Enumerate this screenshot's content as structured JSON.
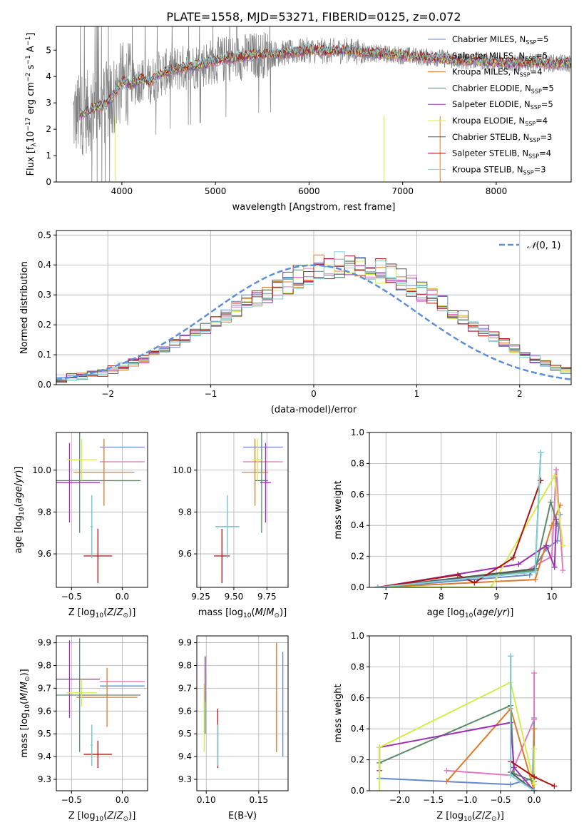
{
  "figure": {
    "title": "PLATE=1558, MJD=53271, FIBERID=0125, z=0.072"
  },
  "models": [
    {
      "key": "chabrier_miles",
      "label_pre": "Chabrier MILES, N",
      "label_sub": "SSP",
      "label_post": "=5",
      "color": "#6688cc"
    },
    {
      "key": "salpeter_miles",
      "label_pre": "Salpeter MILES, N",
      "label_sub": "SSP",
      "label_post": "=5",
      "color": "#e377c2"
    },
    {
      "key": "kroupa_miles",
      "label_pre": "Kroupa MILES, N",
      "label_sub": "SSP",
      "label_post": "=4",
      "color": "#e07b29"
    },
    {
      "key": "chabrier_elodie",
      "label_pre": "Chabrier ELODIE, N",
      "label_sub": "SSP",
      "label_post": "=5",
      "color": "#5b8a6a"
    },
    {
      "key": "salpeter_elodie",
      "label_pre": "Salpeter ELODIE, N",
      "label_sub": "SSP",
      "label_post": "=5",
      "color": "#9b30b0"
    },
    {
      "key": "kroupa_elodie",
      "label_pre": "Kroupa ELODIE, N",
      "label_sub": "SSP",
      "label_post": "=4",
      "color": "#d4ed4a"
    },
    {
      "key": "chabrier_stelib",
      "label_pre": "Chabrier STELIB, N",
      "label_sub": "SSP",
      "label_post": "=3",
      "color": "#555555"
    },
    {
      "key": "salpeter_stelib",
      "label_pre": "Salpeter STELIB, N",
      "label_sub": "SSP",
      "label_post": "=4",
      "color": "#b01010"
    },
    {
      "key": "kroupa_stelib",
      "label_pre": "Kroupa STELIB, N",
      "label_sub": "SSP",
      "label_post": "=3",
      "color": "#7fd3d8"
    }
  ],
  "chart_data": [
    {
      "id": "spectrum",
      "type": "line",
      "xlabel": "wavelength [Angstrom, rest frame]",
      "ylabel": "Flux [f_λ 10^-17 erg cm^-2 s^-1 A^-1]",
      "xlim": [
        3300,
        8800
      ],
      "ylim": [
        0,
        5.9
      ],
      "xticks": [
        4000,
        5000,
        6000,
        7000,
        8000
      ],
      "yticks": [
        0,
        1,
        2,
        3,
        4,
        5
      ],
      "grid": false,
      "legend": "right",
      "data_series": {
        "name": "",
        "color": "#808080"
      },
      "continuum": {
        "x": [
          3500,
          3600,
          3700,
          3800,
          3900,
          4000,
          4100,
          4200,
          4300,
          4400,
          4500,
          4600,
          4700,
          4800,
          5000,
          5200,
          5400,
          5600,
          5800,
          6000,
          6200,
          6400,
          6600,
          6800,
          7000,
          7200,
          7400,
          7600,
          7800,
          8000,
          8200,
          8400,
          8600,
          8800
        ],
        "y": [
          2.5,
          2.6,
          2.8,
          2.9,
          3.2,
          3.8,
          3.7,
          3.9,
          3.8,
          4.1,
          4.2,
          4.3,
          4.35,
          4.4,
          4.6,
          4.7,
          4.8,
          4.85,
          4.9,
          5.0,
          4.95,
          5.0,
          4.9,
          4.85,
          4.8,
          4.75,
          4.7,
          4.6,
          4.6,
          4.55,
          4.5,
          4.55,
          4.5,
          4.5
        ]
      }
    },
    {
      "id": "residual_hist",
      "type": "area",
      "xlabel": "(data-model)/error",
      "ylabel": "Normed distribution",
      "xlim": [
        -2.5,
        2.5
      ],
      "ylim": [
        0,
        0.515
      ],
      "xticks": [
        -2,
        -1,
        0,
        1,
        2
      ],
      "yticks": [
        0.0,
        0.1,
        0.2,
        0.3,
        0.4,
        0.5
      ],
      "grid": true,
      "legend": "top-right",
      "gaussian_label": "𝒩(0, 1)",
      "gaussian_color": "#5b8fd8",
      "bin_edges_start": -2.5,
      "bin_width": 0.1,
      "base_values": [
        0.02,
        0.025,
        0.03,
        0.035,
        0.04,
        0.05,
        0.06,
        0.075,
        0.085,
        0.1,
        0.12,
        0.14,
        0.155,
        0.17,
        0.19,
        0.21,
        0.235,
        0.255,
        0.27,
        0.29,
        0.305,
        0.32,
        0.34,
        0.36,
        0.375,
        0.39,
        0.395,
        0.4,
        0.4,
        0.395,
        0.39,
        0.38,
        0.365,
        0.35,
        0.33,
        0.31,
        0.29,
        0.27,
        0.245,
        0.225,
        0.2,
        0.18,
        0.16,
        0.14,
        0.12,
        0.1,
        0.085,
        0.07,
        0.055,
        0.045
      ]
    },
    {
      "id": "age_vs_Z",
      "type": "scatter",
      "xlabel": "Z [log10(Z/Z⊙)]",
      "ylabel": "age  [log10(age/yr)]",
      "xlim": [
        -0.65,
        0.25
      ],
      "ylim": [
        9.44,
        10.18
      ],
      "xticks": [
        -0.5,
        0.0
      ],
      "yticks": [
        9.6,
        9.8,
        10.0
      ],
      "grid": true,
      "points": [
        {
          "model": "chabrier_miles",
          "x": 0.0,
          "y": 10.11,
          "xerr": 0.22,
          "yerr": 0.0
        },
        {
          "model": "salpeter_miles",
          "x": 0.0,
          "y": 10.04,
          "xerr": 0.22,
          "yerr": 0.0
        },
        {
          "model": "kroupa_miles",
          "x": -0.18,
          "y": 9.99,
          "xerr": 0.3,
          "yerr": 0.16
        },
        {
          "model": "chabrier_elodie",
          "x": -0.42,
          "y": 9.95,
          "xerr": 0.6,
          "yerr": 0.25
        },
        {
          "model": "salpeter_elodie",
          "x": -0.52,
          "y": 9.94,
          "xerr": 0.3,
          "yerr": 0.19
        },
        {
          "model": "kroupa_elodie",
          "x": -0.4,
          "y": 10.05,
          "xerr": 0.15,
          "yerr": 0.1
        },
        {
          "model": "chabrier_stelib",
          "x": -0.3,
          "y": 9.73,
          "xerr": 0.01,
          "yerr": 0.15
        },
        {
          "model": "salpeter_stelib",
          "x": -0.24,
          "y": 9.59,
          "xerr": 0.14,
          "yerr": 0.13
        },
        {
          "model": "kroupa_stelib",
          "x": -0.3,
          "y": 9.73,
          "xerr": 0.01,
          "yerr": 0.15
        }
      ]
    },
    {
      "id": "age_vs_mass",
      "type": "scatter",
      "xlabel": "mass [log10(M/M⊙)]",
      "ylabel": "",
      "xlim": [
        9.22,
        9.91
      ],
      "ylim": [
        9.44,
        10.18
      ],
      "xticks": [
        9.25,
        9.5,
        9.75
      ],
      "yticks": [
        9.6,
        9.8,
        10.0
      ],
      "grid": true,
      "points": [
        {
          "model": "chabrier_miles",
          "x": 9.72,
          "y": 10.11,
          "xerr": 0.15,
          "yerr": 0.0
        },
        {
          "model": "salpeter_miles",
          "x": 9.72,
          "y": 10.04,
          "xerr": 0.15,
          "yerr": 0.0
        },
        {
          "model": "kroupa_miles",
          "x": 9.66,
          "y": 9.99,
          "xerr": 0.1,
          "yerr": 0.16
        },
        {
          "model": "chabrier_elodie",
          "x": 9.71,
          "y": 9.95,
          "xerr": 0.05,
          "yerr": 0.25
        },
        {
          "model": "salpeter_elodie",
          "x": 9.74,
          "y": 9.94,
          "xerr": 0.04,
          "yerr": 0.19
        },
        {
          "model": "kroupa_elodie",
          "x": 9.68,
          "y": 10.05,
          "xerr": 0.04,
          "yerr": 0.1
        },
        {
          "model": "chabrier_stelib",
          "x": 9.45,
          "y": 9.73,
          "xerr": 0.09,
          "yerr": 0.15
        },
        {
          "model": "salpeter_stelib",
          "x": 9.41,
          "y": 9.59,
          "xerr": 0.06,
          "yerr": 0.13
        },
        {
          "model": "kroupa_stelib",
          "x": 9.45,
          "y": 9.73,
          "xerr": 0.09,
          "yerr": 0.15
        }
      ]
    },
    {
      "id": "weight_vs_age",
      "type": "line",
      "xlabel": "age  [log10(age/yr)]",
      "ylabel": "mass weight",
      "xlim": [
        6.7,
        10.35
      ],
      "ylim": [
        0,
        1.0
      ],
      "xticks": [
        7,
        8,
        9,
        10
      ],
      "yticks": [
        0.0,
        0.2,
        0.4,
        0.6,
        0.8,
        1.0
      ],
      "grid": true,
      "series": [
        {
          "model": "chabrier_miles",
          "x": [
            6.85,
            9.6,
            9.9,
            10.1,
            10.15
          ],
          "y": [
            0.0,
            0.08,
            0.25,
            0.3,
            0.47
          ]
        },
        {
          "model": "salpeter_miles",
          "x": [
            6.85,
            9.5,
            10.0,
            10.08,
            10.2
          ],
          "y": [
            0.0,
            0.1,
            0.2,
            0.76,
            0.11
          ]
        },
        {
          "model": "kroupa_miles",
          "x": [
            6.85,
            9.7,
            10.0,
            10.15
          ],
          "y": [
            0.0,
            0.05,
            0.4,
            0.53
          ]
        },
        {
          "model": "chabrier_elodie",
          "x": [
            6.85,
            9.7,
            9.98,
            10.1
          ],
          "y": [
            0.0,
            0.11,
            0.55,
            0.41
          ]
        },
        {
          "model": "salpeter_elodie",
          "x": [
            6.85,
            9.4,
            9.9,
            10.05,
            10.08
          ],
          "y": [
            0.0,
            0.15,
            0.27,
            0.13,
            0.44
          ]
        },
        {
          "model": "kroupa_elodie",
          "x": [
            6.85,
            8.9,
            10.05,
            10.2
          ],
          "y": [
            0.0,
            0.0,
            0.72,
            0.27
          ]
        },
        {
          "model": "chabrier_stelib",
          "x": [
            6.85,
            9.7,
            9.8
          ],
          "y": [
            0.0,
            0.12,
            0.87
          ]
        },
        {
          "model": "salpeter_stelib",
          "x": [
            6.85,
            8.3,
            8.6,
            9.3,
            9.8
          ],
          "y": [
            0.0,
            0.08,
            0.03,
            0.19,
            0.69
          ]
        },
        {
          "model": "kroupa_stelib",
          "x": [
            6.85,
            9.7,
            9.8
          ],
          "y": [
            0.0,
            0.1,
            0.87
          ]
        }
      ]
    },
    {
      "id": "mass_vs_Z",
      "type": "scatter",
      "xlabel": "Z [log10(Z/Z⊙)]",
      "ylabel": "mass [log10(M/M⊙)]",
      "xlim": [
        -0.65,
        0.25
      ],
      "ylim": [
        9.25,
        9.93
      ],
      "xticks": [
        -0.5,
        0.0
      ],
      "yticks": [
        9.3,
        9.4,
        9.5,
        9.6,
        9.7,
        9.8,
        9.9
      ],
      "grid": true,
      "points": [
        {
          "model": "chabrier_miles",
          "x": 0.0,
          "y": 9.71,
          "xerr": 0.22,
          "yerr": 0.0
        },
        {
          "model": "salpeter_miles",
          "x": 0.0,
          "y": 9.73,
          "xerr": 0.22,
          "yerr": 0.0
        },
        {
          "model": "kroupa_miles",
          "x": -0.15,
          "y": 9.66,
          "xerr": 0.3,
          "yerr": 0.13
        },
        {
          "model": "chabrier_elodie",
          "x": -0.42,
          "y": 9.67,
          "xerr": 0.6,
          "yerr": 0.25
        },
        {
          "model": "salpeter_elodie",
          "x": -0.52,
          "y": 9.74,
          "xerr": 0.3,
          "yerr": 0.17
        },
        {
          "model": "kroupa_elodie",
          "x": -0.4,
          "y": 9.68,
          "xerr": 0.15,
          "yerr": 0.06
        },
        {
          "model": "chabrier_stelib",
          "x": -0.3,
          "y": 9.45,
          "xerr": 0.01,
          "yerr": 0.09
        },
        {
          "model": "salpeter_stelib",
          "x": -0.24,
          "y": 9.41,
          "xerr": 0.14,
          "yerr": 0.06
        },
        {
          "model": "kroupa_stelib",
          "x": -0.3,
          "y": 9.45,
          "xerr": 0.01,
          "yerr": 0.09
        }
      ]
    },
    {
      "id": "mass_vs_ebv",
      "type": "scatter",
      "xlabel": "E(B-V)",
      "ylabel": "",
      "xlim": [
        0.091,
        0.178
      ],
      "ylim": [
        9.25,
        9.93
      ],
      "xticks": [
        0.1,
        0.15
      ],
      "yticks": [
        9.3,
        9.4,
        9.5,
        9.6,
        9.7,
        9.8,
        9.9
      ],
      "grid": true,
      "points": [
        {
          "model": "chabrier_miles",
          "x": 0.173,
          "y": 9.63,
          "xerr": 0.0,
          "yerr": 0.23
        },
        {
          "model": "salpeter_miles",
          "x": 0.167,
          "y": 9.66,
          "xerr": 0.0,
          "yerr": 0.24
        },
        {
          "model": "kroupa_miles",
          "x": 0.167,
          "y": 9.66,
          "xerr": 0.0,
          "yerr": 0.24
        },
        {
          "model": "chabrier_elodie",
          "x": 0.099,
          "y": 9.67,
          "xerr": 0.0,
          "yerr": 0.17
        },
        {
          "model": "salpeter_elodie",
          "x": 0.099,
          "y": 9.74,
          "xerr": 0.0,
          "yerr": 0.1
        },
        {
          "model": "kroupa_elodie",
          "x": 0.098,
          "y": 9.57,
          "xerr": 0.0,
          "yerr": 0.15
        },
        {
          "model": "chabrier_stelib",
          "x": 0.111,
          "y": 9.45,
          "xerr": 0.0,
          "yerr": 0.09
        },
        {
          "model": "salpeter_stelib",
          "x": 0.111,
          "y": 9.48,
          "xerr": 0.0,
          "yerr": 0.13
        },
        {
          "model": "kroupa_stelib",
          "x": 0.111,
          "y": 9.45,
          "xerr": 0.0,
          "yerr": 0.09
        }
      ]
    },
    {
      "id": "weight_vs_Z",
      "type": "line",
      "xlabel": "Z [log10(Z/Z⊙)]",
      "ylabel": "mass weight",
      "xlim": [
        -2.45,
        0.55
      ],
      "ylim": [
        0,
        1.0
      ],
      "xticks": [
        -2.0,
        -1.5,
        -1.0,
        -0.5,
        0.0
      ],
      "yticks": [
        0.0,
        0.2,
        0.4,
        0.6,
        0.8,
        1.0
      ],
      "grid": true,
      "series": [
        {
          "model": "chabrier_miles",
          "x": [
            -2.3,
            -0.35,
            -0.02,
            0.0
          ],
          "y": [
            0.08,
            0.04,
            0.08,
            0.47
          ]
        },
        {
          "model": "salpeter_miles",
          "x": [
            -1.3,
            -0.35,
            0.0,
            0.0
          ],
          "y": [
            0.13,
            0.1,
            0.46,
            0.76
          ]
        },
        {
          "model": "kroupa_miles",
          "x": [
            -1.3,
            -0.35,
            0.0,
            0.0
          ],
          "y": [
            0.06,
            0.53,
            0.0,
            0.4
          ]
        },
        {
          "model": "chabrier_elodie",
          "x": [
            -2.3,
            -0.35,
            -0.3,
            0.0
          ],
          "y": [
            0.18,
            0.55,
            0.11,
            0.06
          ]
        },
        {
          "model": "salpeter_elodie",
          "x": [
            -2.3,
            -2.3,
            -0.35,
            -0.3,
            0.0
          ],
          "y": [
            0.13,
            0.28,
            0.44,
            0.15,
            0.0
          ]
        },
        {
          "model": "kroupa_elodie",
          "x": [
            -2.3,
            -2.3,
            -0.35,
            0.0,
            0.0
          ],
          "y": [
            0.0,
            0.28,
            0.7,
            0.04,
            0.27
          ]
        },
        {
          "model": "chabrier_stelib",
          "x": [
            -0.35,
            -0.35,
            0.0
          ],
          "y": [
            0.87,
            0.12,
            0.0
          ]
        },
        {
          "model": "salpeter_stelib",
          "x": [
            -0.35,
            0.0,
            0.3
          ],
          "y": [
            0.19,
            0.09,
            0.03
          ]
        },
        {
          "model": "kroupa_stelib",
          "x": [
            -0.35,
            -0.35,
            0.0
          ],
          "y": [
            0.87,
            0.1,
            0.0
          ]
        }
      ]
    }
  ]
}
